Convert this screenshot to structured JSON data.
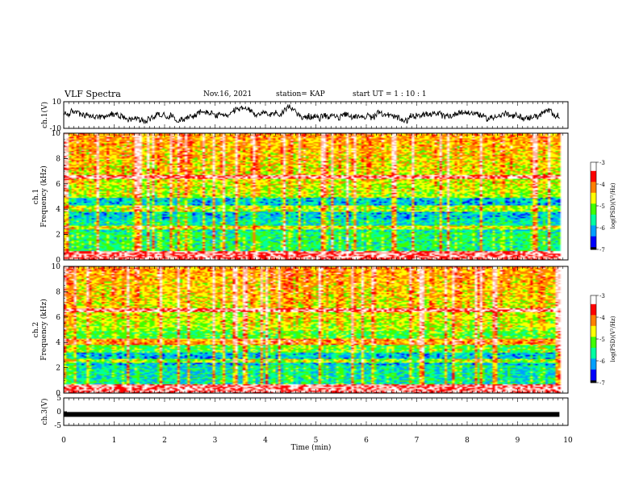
{
  "header": {
    "title": "VLF Spectra",
    "date": "Nov.16, 2021",
    "station": "station= KAP",
    "start": "start  UT =  1 : 10 : 1"
  },
  "chart_data": [
    {
      "type": "line",
      "panel": "ch1-waveform",
      "ylabel": "ch.1(V)",
      "ylim": [
        -10,
        10
      ],
      "yticks": [
        "10",
        "-10"
      ],
      "xlim": [
        0,
        10
      ],
      "x_end": 9.83,
      "approx_level_v": 0,
      "approx_amplitude_v": 4,
      "color": "#000000"
    },
    {
      "type": "heatmap",
      "panel": "ch1-spectrogram",
      "ylabel": "ch.1\nFrequency (kHz)",
      "ylim": [
        0,
        10
      ],
      "yticks": [
        "0",
        "2",
        "4",
        "6",
        "8",
        "10"
      ],
      "xlim": [
        0,
        10
      ],
      "x_end": 9.83,
      "colorbar": {
        "label": "log(PSD)(V²/Hz)",
        "range": [
          -7,
          -3
        ],
        "ticks": [
          "-3",
          "-4",
          "-5",
          "-6",
          "-7"
        ]
      }
    },
    {
      "type": "heatmap",
      "panel": "ch2-spectrogram",
      "ylabel": "ch.2\nFrequency (kHz)",
      "ylim": [
        0,
        10
      ],
      "yticks": [
        "0",
        "2",
        "4",
        "6",
        "8",
        "10"
      ],
      "xlim": [
        0,
        10
      ],
      "x_end": 9.83,
      "colorbar": {
        "label": "log(PSD)(V²/Hz)",
        "range": [
          -7,
          -3
        ],
        "ticks": [
          "-3",
          "-4",
          "-5",
          "-6",
          "-7"
        ]
      }
    },
    {
      "type": "line",
      "panel": "ch3-waveform",
      "ylabel": "ch.3(V)",
      "ylim": [
        -5,
        5
      ],
      "yticks": [
        "5",
        "0",
        "-5"
      ],
      "xlim": [
        0,
        10
      ],
      "x_end": 9.83,
      "approx_level_v": -1,
      "color": "#000000"
    }
  ],
  "xaxis": {
    "label": "Time  (min)",
    "ticks": [
      "0",
      "1",
      "2",
      "3",
      "4",
      "5",
      "6",
      "7",
      "8",
      "9",
      "10"
    ]
  },
  "colors": {
    "colormap": [
      "#000000",
      "#0000ff",
      "#00a0ff",
      "#00ffa0",
      "#40ff00",
      "#ffff00",
      "#ff8000",
      "#ff0000",
      "#ffffff"
    ]
  }
}
